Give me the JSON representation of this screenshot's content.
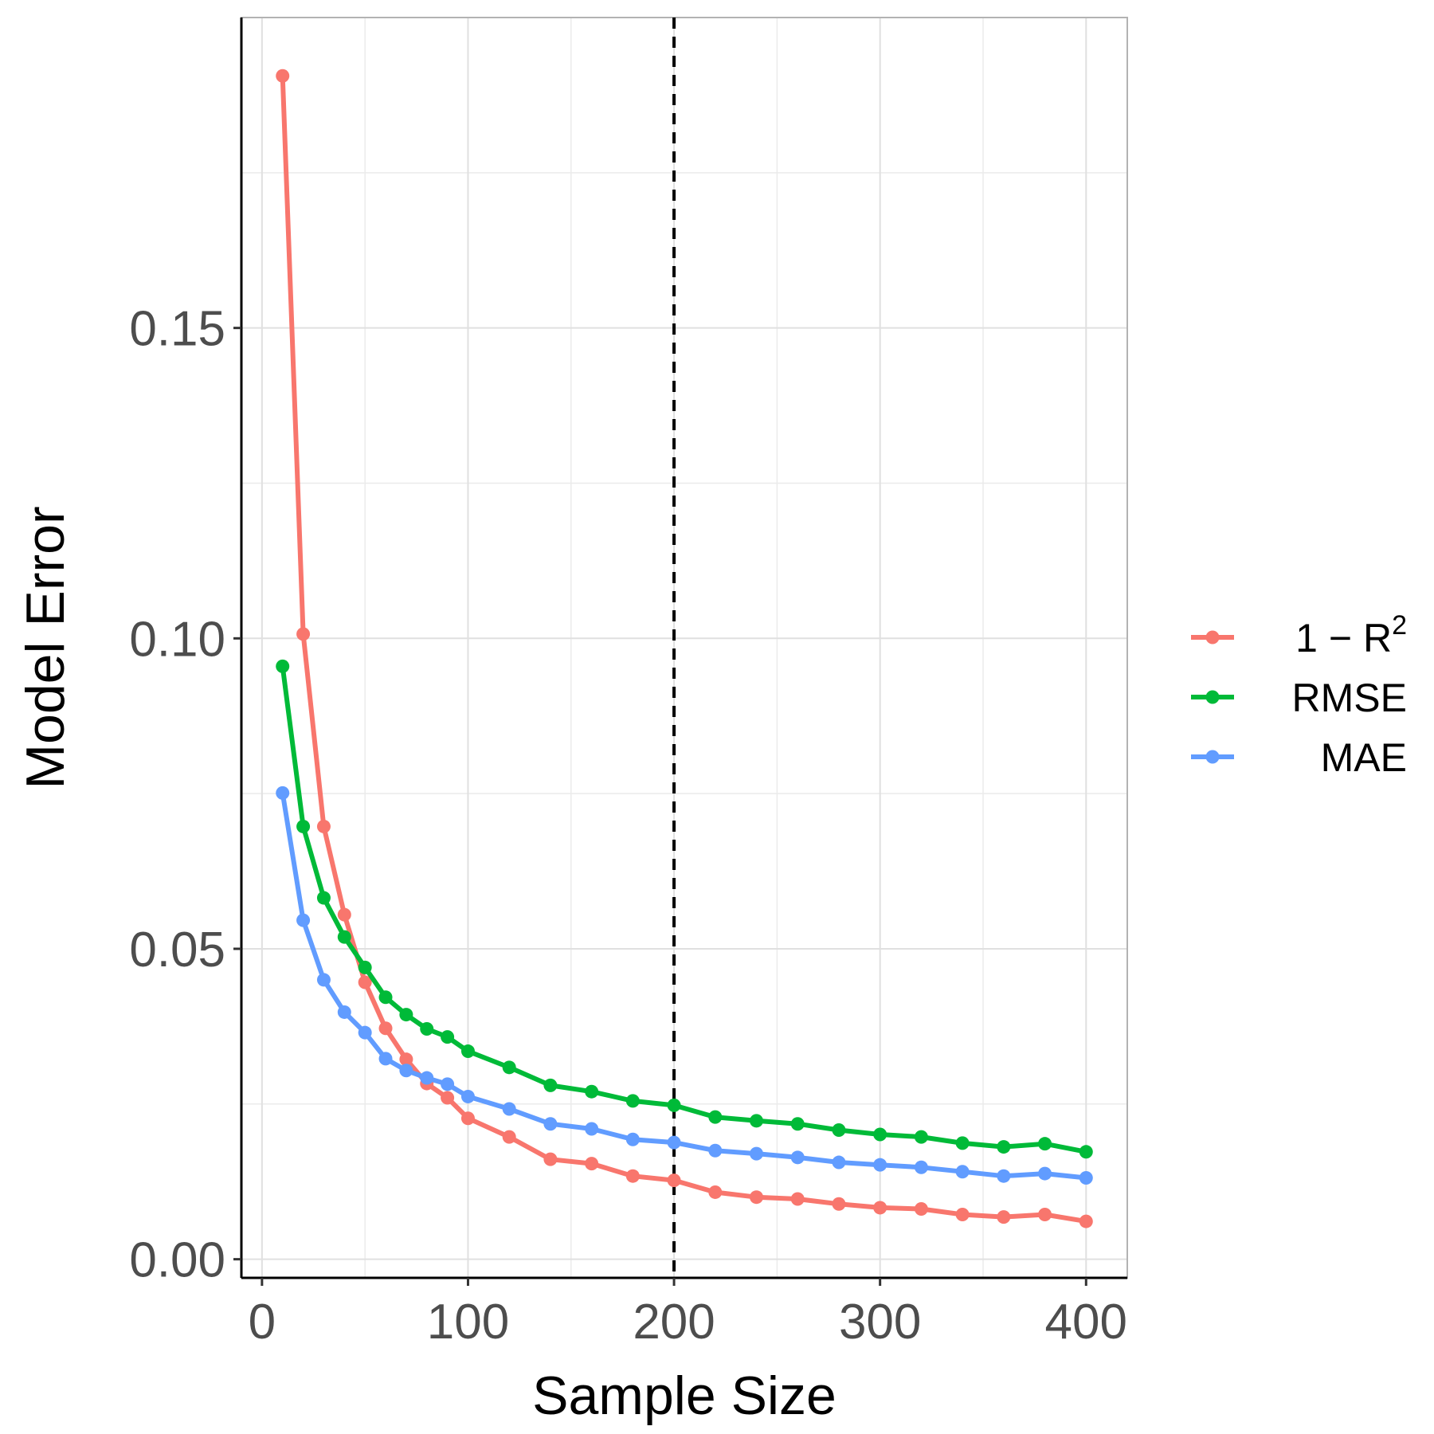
{
  "chart_data": {
    "type": "line",
    "xlabel": "Sample Size",
    "ylabel": "Model Error",
    "xlim": [
      -10,
      420
    ],
    "ylim": [
      -0.003,
      0.2
    ],
    "x_ticks": [
      0,
      100,
      200,
      300,
      400
    ],
    "x_tick_labels": [
      "0",
      "100",
      "200",
      "300",
      "400"
    ],
    "y_ticks": [
      0.0,
      0.05,
      0.1,
      0.15
    ],
    "y_tick_labels": [
      "0.00",
      "0.05",
      "0.10",
      "0.15"
    ],
    "grid": true,
    "legend_position": "right",
    "vline": {
      "x": 200,
      "style": "dashed",
      "color": "#000000"
    },
    "x": [
      10,
      20,
      30,
      40,
      50,
      60,
      70,
      80,
      90,
      100,
      120,
      140,
      160,
      180,
      200,
      220,
      240,
      260,
      280,
      300,
      320,
      340,
      360,
      380,
      400
    ],
    "series": [
      {
        "name": "1 − R²",
        "legend_base": "1 − R",
        "legend_sup": "2",
        "color": "#F8766D",
        "values": [
          0.1906,
          0.1007,
          0.0697,
          0.0555,
          0.0446,
          0.0372,
          0.0322,
          0.0283,
          0.026,
          0.0227,
          0.0197,
          0.0161,
          0.0154,
          0.0134,
          0.0127,
          0.0108,
          0.01,
          0.0097,
          0.0089,
          0.0083,
          0.0081,
          0.0072,
          0.0068,
          0.0072,
          0.0061
        ]
      },
      {
        "name": "RMSE",
        "color": "#00BA38",
        "values": [
          0.0955,
          0.0697,
          0.0582,
          0.0519,
          0.047,
          0.0422,
          0.0394,
          0.0371,
          0.0358,
          0.0335,
          0.0309,
          0.028,
          0.027,
          0.0255,
          0.0248,
          0.0229,
          0.0223,
          0.0218,
          0.0208,
          0.0201,
          0.0197,
          0.0187,
          0.0181,
          0.0186,
          0.0173
        ]
      },
      {
        "name": "MAE",
        "color": "#619CFF",
        "values": [
          0.0751,
          0.0546,
          0.045,
          0.0398,
          0.0365,
          0.0323,
          0.0304,
          0.0292,
          0.0282,
          0.0262,
          0.0242,
          0.0218,
          0.021,
          0.0193,
          0.0188,
          0.0175,
          0.017,
          0.0164,
          0.0156,
          0.0152,
          0.0148,
          0.0141,
          0.0134,
          0.0138,
          0.0131
        ]
      }
    ]
  }
}
